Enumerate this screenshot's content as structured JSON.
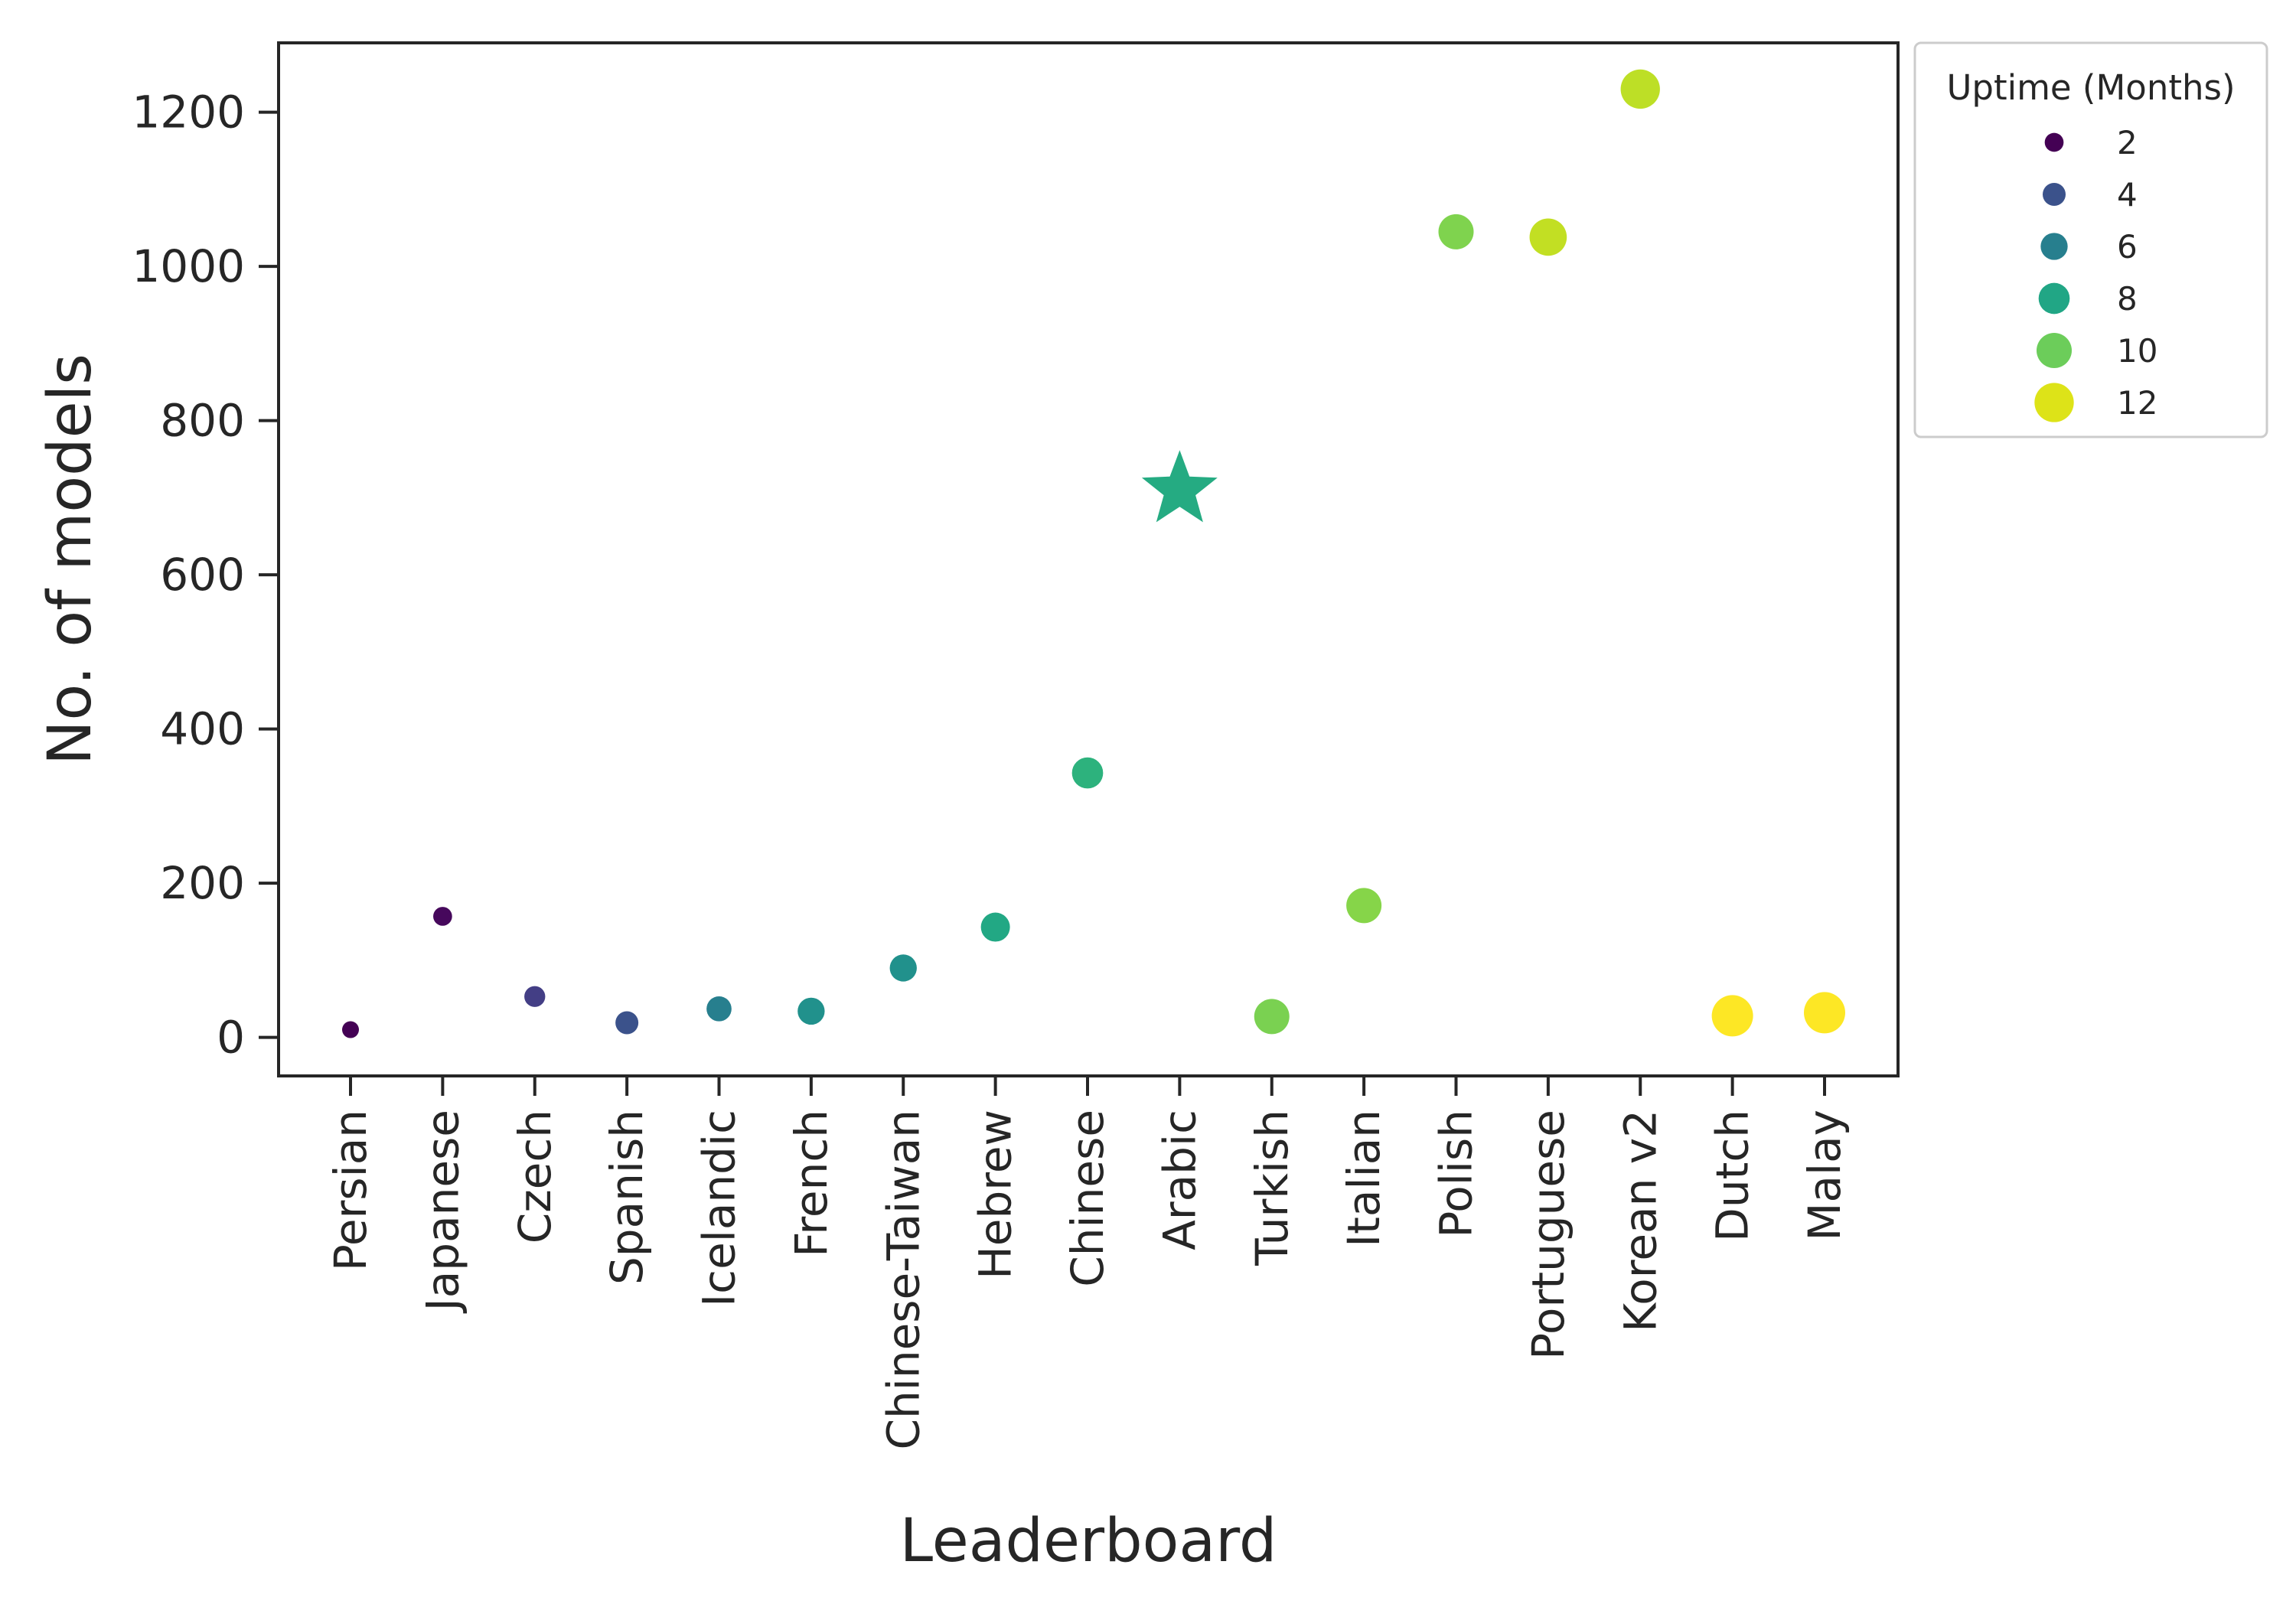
{
  "chart_data": {
    "type": "scatter",
    "title": "",
    "xlabel": "Leaderboard",
    "ylabel": "No. of models",
    "ylim": [
      -50,
      1290
    ],
    "yticks": [
      0,
      200,
      400,
      600,
      800,
      1000,
      1200
    ],
    "grid": false,
    "legend_position": "outside top-right",
    "categories": [
      "Persian",
      "Japanese",
      "Czech",
      "Spanish",
      "Icelandic",
      "French",
      "Chinese-Taiwan",
      "Hebrew",
      "Chinese",
      "Arabic",
      "Turkish",
      "Italian",
      "Polish",
      "Portuguese",
      "Korean v2",
      "Dutch",
      "Malay"
    ],
    "points": [
      {
        "leaderboard": "Persian",
        "models": 10,
        "uptime_months": 1,
        "color": "#440154",
        "marker": "circle"
      },
      {
        "leaderboard": "Japanese",
        "models": 157,
        "uptime_months": 2,
        "color": "#46085c",
        "marker": "circle"
      },
      {
        "leaderboard": "Czech",
        "models": 53,
        "uptime_months": 3,
        "color": "#433e85",
        "marker": "circle"
      },
      {
        "leaderboard": "Spanish",
        "models": 19,
        "uptime_months": 4,
        "color": "#3b528b",
        "marker": "circle"
      },
      {
        "leaderboard": "Icelandic",
        "models": 37,
        "uptime_months": 5,
        "color": "#277f8e",
        "marker": "circle"
      },
      {
        "leaderboard": "French",
        "models": 34,
        "uptime_months": 6,
        "color": "#21918c",
        "marker": "circle"
      },
      {
        "leaderboard": "Chinese-Taiwan",
        "models": 90,
        "uptime_months": 6,
        "color": "#21918c",
        "marker": "circle"
      },
      {
        "leaderboard": "Hebrew",
        "models": 143,
        "uptime_months": 7,
        "color": "#22a884",
        "marker": "circle"
      },
      {
        "leaderboard": "Chinese",
        "models": 343,
        "uptime_months": 8,
        "color": "#2db27d",
        "marker": "circle"
      },
      {
        "leaderboard": "Arabic",
        "models": 710,
        "uptime_months": 8,
        "color": "#25ab82",
        "marker": "star"
      },
      {
        "leaderboard": "Turkish",
        "models": 27,
        "uptime_months": 10,
        "color": "#7ad151",
        "marker": "circle"
      },
      {
        "leaderboard": "Italian",
        "models": 171,
        "uptime_months": 10,
        "color": "#86d549",
        "marker": "circle"
      },
      {
        "leaderboard": "Polish",
        "models": 1045,
        "uptime_months": 10,
        "color": "#7fd34e",
        "marker": "circle"
      },
      {
        "leaderboard": "Portuguese",
        "models": 1038,
        "uptime_months": 11,
        "color": "#c2df23",
        "marker": "circle"
      },
      {
        "leaderboard": "Korean v2",
        "models": 1230,
        "uptime_months": 12,
        "color": "#bddf26",
        "marker": "circle"
      },
      {
        "leaderboard": "Dutch",
        "models": 28,
        "uptime_months": 13,
        "color": "#fde725",
        "marker": "circle"
      },
      {
        "leaderboard": "Malay",
        "models": 32,
        "uptime_months": 13,
        "color": "#fde725",
        "marker": "circle"
      }
    ],
    "legend": {
      "title": "Uptime (Months)",
      "entries": [
        {
          "label": "2",
          "value": 2,
          "color": "#440154"
        },
        {
          "label": "4",
          "value": 4,
          "color": "#3b528b"
        },
        {
          "label": "6",
          "value": 6,
          "color": "#277f8e"
        },
        {
          "label": "8",
          "value": 8,
          "color": "#21a685"
        },
        {
          "label": "10",
          "value": 10,
          "color": "#6ccd5a"
        },
        {
          "label": "12",
          "value": 12,
          "color": "#dde318"
        }
      ]
    }
  }
}
